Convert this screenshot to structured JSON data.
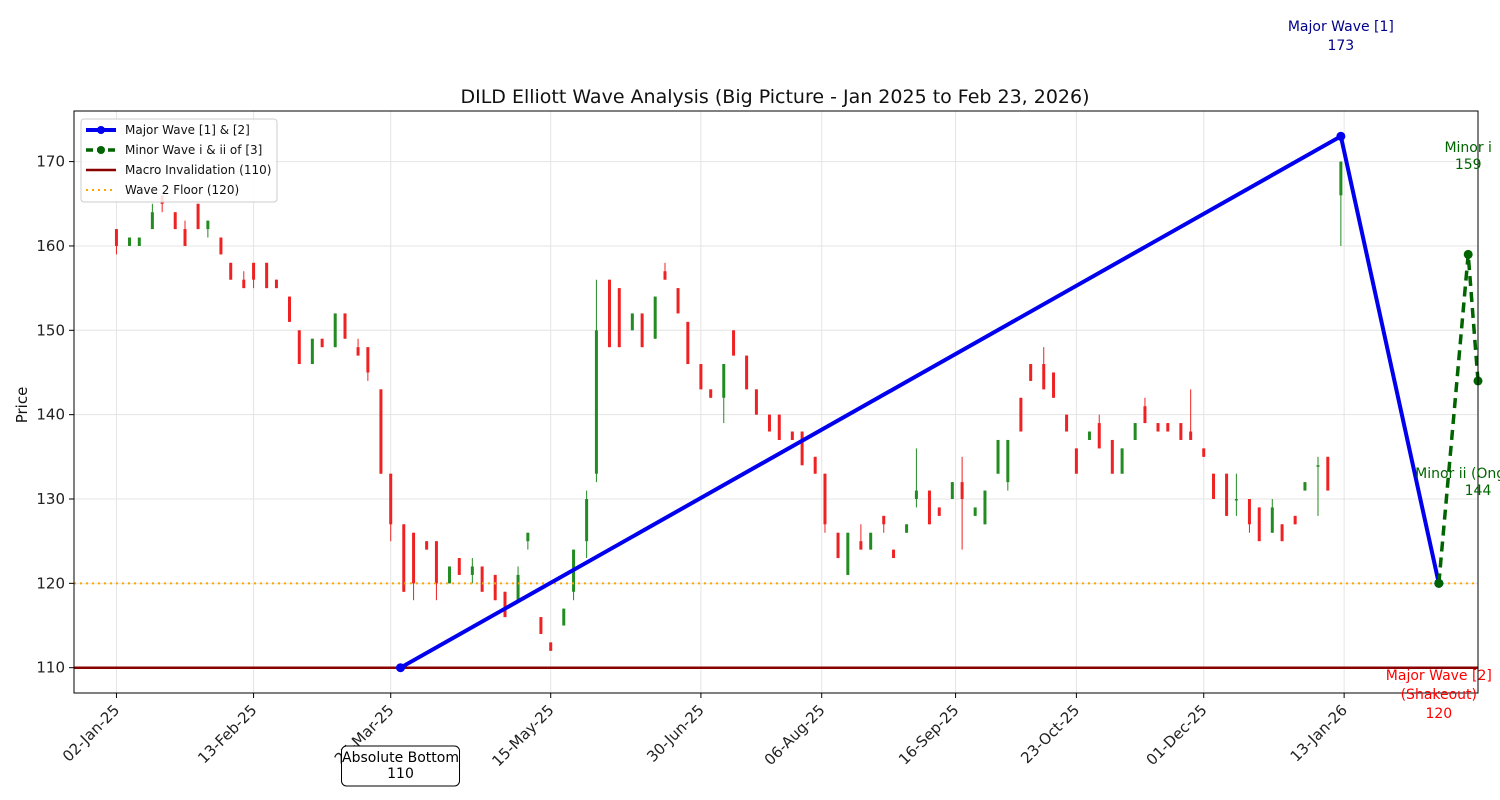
{
  "chart_data": {
    "type": "candlestick",
    "title": "DILD Elliott Wave Analysis (Big Picture - Jan 2025 to Feb 23, 2026)",
    "xlabel": "",
    "ylabel": "Price",
    "x_range": [
      "2024-12-20",
      "2026-02-23"
    ],
    "ylim": [
      107,
      176
    ],
    "grid": true,
    "legend_position": "top-left",
    "x_ticks": [
      {
        "date": "2025-01-02",
        "label": "02-Jan-25"
      },
      {
        "date": "2025-02-13",
        "label": "13-Feb-25"
      },
      {
        "date": "2025-03-27",
        "label": "27-Mar-25"
      },
      {
        "date": "2025-05-15",
        "label": "15-May-25"
      },
      {
        "date": "2025-06-30",
        "label": "30-Jun-25"
      },
      {
        "date": "2025-08-06",
        "label": "06-Aug-25"
      },
      {
        "date": "2025-09-16",
        "label": "16-Sep-25"
      },
      {
        "date": "2025-10-23",
        "label": "23-Oct-25"
      },
      {
        "date": "2025-12-01",
        "label": "01-Dec-25"
      },
      {
        "date": "2026-01-13",
        "label": "13-Jan-26"
      }
    ],
    "y_ticks": [
      110,
      120,
      130,
      140,
      150,
      160,
      170
    ],
    "candles": [
      {
        "date": "2025-01-02",
        "o": 162,
        "h": 162,
        "l": 159,
        "c": 160
      },
      {
        "date": "2025-01-06",
        "o": 160,
        "h": 161,
        "l": 160,
        "c": 161
      },
      {
        "date": "2025-01-09",
        "o": 160,
        "h": 161,
        "l": 160,
        "c": 161
      },
      {
        "date": "2025-01-13",
        "o": 162,
        "h": 165,
        "l": 162,
        "c": 164
      },
      {
        "date": "2025-01-16",
        "o": 166,
        "h": 166,
        "l": 164,
        "c": 165
      },
      {
        "date": "2025-01-20",
        "o": 164,
        "h": 164,
        "l": 162,
        "c": 162
      },
      {
        "date": "2025-01-23",
        "o": 162,
        "h": 163,
        "l": 160,
        "c": 160
      },
      {
        "date": "2025-01-27",
        "o": 165,
        "h": 165,
        "l": 162,
        "c": 162
      },
      {
        "date": "2025-01-30",
        "o": 162,
        "h": 163,
        "l": 161,
        "c": 163
      },
      {
        "date": "2025-02-03",
        "o": 161,
        "h": 161,
        "l": 159,
        "c": 159
      },
      {
        "date": "2025-02-06",
        "o": 158,
        "h": 158,
        "l": 156,
        "c": 156
      },
      {
        "date": "2025-02-10",
        "o": 156,
        "h": 157,
        "l": 155,
        "c": 155
      },
      {
        "date": "2025-02-13",
        "o": 158,
        "h": 158,
        "l": 155,
        "c": 156
      },
      {
        "date": "2025-02-17",
        "o": 158,
        "h": 158,
        "l": 155,
        "c": 155
      },
      {
        "date": "2025-02-20",
        "o": 156,
        "h": 156,
        "l": 155,
        "c": 155
      },
      {
        "date": "2025-02-24",
        "o": 154,
        "h": 154,
        "l": 151,
        "c": 151
      },
      {
        "date": "2025-02-27",
        "o": 150,
        "h": 150,
        "l": 146,
        "c": 146
      },
      {
        "date": "2025-03-03",
        "o": 146,
        "h": 149,
        "l": 146,
        "c": 149
      },
      {
        "date": "2025-03-06",
        "o": 149,
        "h": 149,
        "l": 148,
        "c": 148
      },
      {
        "date": "2025-03-10",
        "o": 148,
        "h": 152,
        "l": 148,
        "c": 152
      },
      {
        "date": "2025-03-13",
        "o": 152,
        "h": 152,
        "l": 149,
        "c": 149
      },
      {
        "date": "2025-03-17",
        "o": 148,
        "h": 149,
        "l": 147,
        "c": 147
      },
      {
        "date": "2025-03-20",
        "o": 148,
        "h": 148,
        "l": 144,
        "c": 145
      },
      {
        "date": "2025-03-24",
        "o": 143,
        "h": 143,
        "l": 133,
        "c": 133
      },
      {
        "date": "2025-03-27",
        "o": 133,
        "h": 133,
        "l": 125,
        "c": 127
      },
      {
        "date": "2025-03-31",
        "o": 127,
        "h": 127,
        "l": 119,
        "c": 119
      },
      {
        "date": "2025-04-03",
        "o": 126,
        "h": 126,
        "l": 118,
        "c": 120
      },
      {
        "date": "2025-04-07",
        "o": 125,
        "h": 125,
        "l": 124,
        "c": 124
      },
      {
        "date": "2025-04-10",
        "o": 125,
        "h": 125,
        "l": 118,
        "c": 120
      },
      {
        "date": "2025-04-14",
        "o": 120,
        "h": 122,
        "l": 120,
        "c": 122
      },
      {
        "date": "2025-04-17",
        "o": 123,
        "h": 123,
        "l": 121,
        "c": 121
      },
      {
        "date": "2025-04-21",
        "o": 121,
        "h": 123,
        "l": 120,
        "c": 122
      },
      {
        "date": "2025-04-24",
        "o": 122,
        "h": 122,
        "l": 119,
        "c": 119
      },
      {
        "date": "2025-04-28",
        "o": 121,
        "h": 121,
        "l": 118,
        "c": 118
      },
      {
        "date": "2025-05-01",
        "o": 119,
        "h": 119,
        "l": 116,
        "c": 116
      },
      {
        "date": "2025-05-05",
        "o": 118,
        "h": 122,
        "l": 118,
        "c": 121
      },
      {
        "date": "2025-05-08",
        "o": 125,
        "h": 126,
        "l": 124,
        "c": 126
      },
      {
        "date": "2025-05-12",
        "o": 116,
        "h": 116,
        "l": 114,
        "c": 114
      },
      {
        "date": "2025-05-15",
        "o": 113,
        "h": 113,
        "l": 112,
        "c": 112
      },
      {
        "date": "2025-05-19",
        "o": 115,
        "h": 117,
        "l": 115,
        "c": 117
      },
      {
        "date": "2025-05-22",
        "o": 119,
        "h": 124,
        "l": 118,
        "c": 124
      },
      {
        "date": "2025-05-26",
        "o": 125,
        "h": 131,
        "l": 123,
        "c": 130
      },
      {
        "date": "2025-05-29",
        "o": 133,
        "h": 156,
        "l": 132,
        "c": 150
      },
      {
        "date": "2025-06-02",
        "o": 156,
        "h": 156,
        "l": 148,
        "c": 148
      },
      {
        "date": "2025-06-05",
        "o": 155,
        "h": 155,
        "l": 148,
        "c": 148
      },
      {
        "date": "2025-06-09",
        "o": 150,
        "h": 152,
        "l": 150,
        "c": 152
      },
      {
        "date": "2025-06-12",
        "o": 152,
        "h": 152,
        "l": 148,
        "c": 148
      },
      {
        "date": "2025-06-16",
        "o": 149,
        "h": 154,
        "l": 149,
        "c": 154
      },
      {
        "date": "2025-06-19",
        "o": 157,
        "h": 158,
        "l": 156,
        "c": 156
      },
      {
        "date": "2025-06-23",
        "o": 155,
        "h": 155,
        "l": 152,
        "c": 152
      },
      {
        "date": "2025-06-26",
        "o": 151,
        "h": 151,
        "l": 146,
        "c": 146
      },
      {
        "date": "2025-06-30",
        "o": 146,
        "h": 146,
        "l": 143,
        "c": 143
      },
      {
        "date": "2025-07-03",
        "o": 143,
        "h": 143,
        "l": 142,
        "c": 142
      },
      {
        "date": "2025-07-07",
        "o": 142,
        "h": 146,
        "l": 139,
        "c": 146
      },
      {
        "date": "2025-07-10",
        "o": 150,
        "h": 150,
        "l": 147,
        "c": 147
      },
      {
        "date": "2025-07-14",
        "o": 147,
        "h": 147,
        "l": 143,
        "c": 143
      },
      {
        "date": "2025-07-17",
        "o": 143,
        "h": 143,
        "l": 140,
        "c": 140
      },
      {
        "date": "2025-07-21",
        "o": 140,
        "h": 140,
        "l": 138,
        "c": 138
      },
      {
        "date": "2025-07-24",
        "o": 140,
        "h": 140,
        "l": 137,
        "c": 137
      },
      {
        "date": "2025-07-28",
        "o": 138,
        "h": 138,
        "l": 137,
        "c": 137
      },
      {
        "date": "2025-07-31",
        "o": 138,
        "h": 138,
        "l": 134,
        "c": 134
      },
      {
        "date": "2025-08-04",
        "o": 135,
        "h": 135,
        "l": 133,
        "c": 133
      },
      {
        "date": "2025-08-07",
        "o": 133,
        "h": 133,
        "l": 126,
        "c": 127
      },
      {
        "date": "2025-08-11",
        "o": 126,
        "h": 126,
        "l": 123,
        "c": 123
      },
      {
        "date": "2025-08-14",
        "o": 121,
        "h": 126,
        "l": 121,
        "c": 126
      },
      {
        "date": "2025-08-18",
        "o": 125,
        "h": 127,
        "l": 124,
        "c": 124
      },
      {
        "date": "2025-08-21",
        "o": 124,
        "h": 126,
        "l": 124,
        "c": 126
      },
      {
        "date": "2025-08-25",
        "o": 128,
        "h": 128,
        "l": 126,
        "c": 127
      },
      {
        "date": "2025-08-28",
        "o": 124,
        "h": 124,
        "l": 123,
        "c": 123
      },
      {
        "date": "2025-09-01",
        "o": 126,
        "h": 127,
        "l": 126,
        "c": 127
      },
      {
        "date": "2025-09-04",
        "o": 130,
        "h": 136,
        "l": 129,
        "c": 131
      },
      {
        "date": "2025-09-08",
        "o": 131,
        "h": 131,
        "l": 127,
        "c": 127
      },
      {
        "date": "2025-09-11",
        "o": 129,
        "h": 129,
        "l": 128,
        "c": 128
      },
      {
        "date": "2025-09-15",
        "o": 130,
        "h": 132,
        "l": 130,
        "c": 132
      },
      {
        "date": "2025-09-18",
        "o": 132,
        "h": 135,
        "l": 124,
        "c": 130
      },
      {
        "date": "2025-09-22",
        "o": 128,
        "h": 129,
        "l": 128,
        "c": 129
      },
      {
        "date": "2025-09-25",
        "o": 127,
        "h": 131,
        "l": 127,
        "c": 131
      },
      {
        "date": "2025-09-29",
        "o": 133,
        "h": 137,
        "l": 133,
        "c": 137
      },
      {
        "date": "2025-10-02",
        "o": 132,
        "h": 137,
        "l": 131,
        "c": 137
      },
      {
        "date": "2025-10-06",
        "o": 142,
        "h": 142,
        "l": 138,
        "c": 138
      },
      {
        "date": "2025-10-09",
        "o": 146,
        "h": 146,
        "l": 144,
        "c": 144
      },
      {
        "date": "2025-10-13",
        "o": 146,
        "h": 148,
        "l": 143,
        "c": 143
      },
      {
        "date": "2025-10-16",
        "o": 145,
        "h": 145,
        "l": 142,
        "c": 142
      },
      {
        "date": "2025-10-20",
        "o": 140,
        "h": 140,
        "l": 138,
        "c": 138
      },
      {
        "date": "2025-10-23",
        "o": 136,
        "h": 136,
        "l": 133,
        "c": 133
      },
      {
        "date": "2025-10-27",
        "o": 137,
        "h": 138,
        "l": 137,
        "c": 138
      },
      {
        "date": "2025-10-30",
        "o": 139,
        "h": 140,
        "l": 136,
        "c": 136
      },
      {
        "date": "2025-11-03",
        "o": 137,
        "h": 137,
        "l": 133,
        "c": 133
      },
      {
        "date": "2025-11-06",
        "o": 133,
        "h": 136,
        "l": 133,
        "c": 136
      },
      {
        "date": "2025-11-10",
        "o": 137,
        "h": 139,
        "l": 137,
        "c": 139
      },
      {
        "date": "2025-11-13",
        "o": 141,
        "h": 142,
        "l": 139,
        "c": 139
      },
      {
        "date": "2025-11-17",
        "o": 139,
        "h": 139,
        "l": 138,
        "c": 138
      },
      {
        "date": "2025-11-20",
        "o": 139,
        "h": 139,
        "l": 138,
        "c": 138
      },
      {
        "date": "2025-11-24",
        "o": 139,
        "h": 139,
        "l": 137,
        "c": 137
      },
      {
        "date": "2025-11-27",
        "o": 138,
        "h": 143,
        "l": 137,
        "c": 137
      },
      {
        "date": "2025-12-01",
        "o": 136,
        "h": 136,
        "l": 135,
        "c": 135
      },
      {
        "date": "2025-12-04",
        "o": 133,
        "h": 133,
        "l": 130,
        "c": 130
      },
      {
        "date": "2025-12-08",
        "o": 133,
        "h": 133,
        "l": 128,
        "c": 128
      },
      {
        "date": "2025-12-11",
        "o": 130,
        "h": 133,
        "l": 128,
        "c": 130
      },
      {
        "date": "2025-12-15",
        "o": 130,
        "h": 130,
        "l": 126,
        "c": 127
      },
      {
        "date": "2025-12-18",
        "o": 129,
        "h": 129,
        "l": 125,
        "c": 125
      },
      {
        "date": "2025-12-22",
        "o": 126,
        "h": 130,
        "l": 126,
        "c": 129
      },
      {
        "date": "2025-12-25",
        "o": 127,
        "h": 127,
        "l": 125,
        "c": 125
      },
      {
        "date": "2025-12-29",
        "o": 128,
        "h": 128,
        "l": 127,
        "c": 127
      },
      {
        "date": "2026-01-01",
        "o": 131,
        "h": 132,
        "l": 131,
        "c": 132
      },
      {
        "date": "2026-01-05",
        "o": 134,
        "h": 135,
        "l": 128,
        "c": 134
      },
      {
        "date": "2026-01-08",
        "o": 135,
        "h": 135,
        "l": 131,
        "c": 131
      },
      {
        "date": "2026-01-12",
        "o": 166,
        "h": 170,
        "l": 160,
        "c": 170
      }
    ],
    "series": [
      {
        "name": "Major Wave [1] & [2]",
        "points": [
          {
            "date": "2025-03-30",
            "price": 110
          },
          {
            "date": "2026-01-12",
            "price": 173
          },
          {
            "date": "2026-02-11",
            "price": 120
          }
        ]
      },
      {
        "name": "Minor Wave i & ii of [3]",
        "points": [
          {
            "date": "2026-02-11",
            "price": 120
          },
          {
            "date": "2026-02-20",
            "price": 159
          },
          {
            "date": "2026-02-23",
            "price": 144
          }
        ]
      }
    ],
    "reference_lines": [
      {
        "name": "Macro Invalidation (110)",
        "value": 110
      },
      {
        "name": "Wave 2 Floor (120)",
        "value": 120
      }
    ],
    "annotations": [
      {
        "lines": [
          "Major Wave [1]",
          "173"
        ],
        "date": "2026-01-12",
        "price": 173
      },
      {
        "lines": [
          "Minor i",
          "159"
        ],
        "date": "2026-02-20",
        "price": 159
      },
      {
        "lines": [
          "Minor ii (Ongoing)",
          "144"
        ],
        "date": "2026-02-23",
        "price": 144
      },
      {
        "lines": [
          "Major Wave [2]",
          "(Shakeout)",
          "120"
        ],
        "date": "2026-02-11",
        "price": 120
      },
      {
        "lines": [
          "Absolute Bottom",
          "110"
        ],
        "date": "2025-03-30",
        "price": 110
      }
    ]
  },
  "colors": {
    "major_wave": "#0000ee",
    "minor_wave": "#006400",
    "invalidation": "#8b0000",
    "floor": "#ffa500",
    "candle_up": "#228b22",
    "candle_down": "#ee2222",
    "major_label": "#00008b",
    "shakeout_label": "#ff0000",
    "grid": "#e4e4e4"
  }
}
